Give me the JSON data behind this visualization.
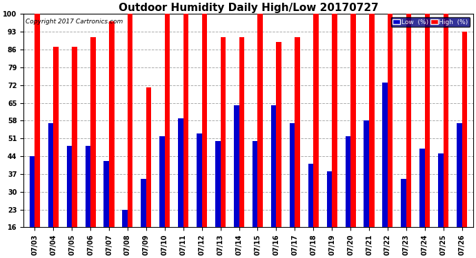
{
  "title": "Outdoor Humidity Daily High/Low 20170727",
  "copyright": "Copyright 2017 Cartronics.com",
  "dates": [
    "07/03",
    "07/04",
    "07/05",
    "07/06",
    "07/07",
    "07/08",
    "07/09",
    "07/10",
    "07/11",
    "07/12",
    "07/13",
    "07/14",
    "07/15",
    "07/16",
    "07/17",
    "07/18",
    "07/19",
    "07/20",
    "07/21",
    "07/22",
    "07/23",
    "07/24",
    "07/25",
    "07/26"
  ],
  "high": [
    100,
    87,
    87,
    91,
    97,
    100,
    71,
    100,
    100,
    100,
    91,
    91,
    100,
    89,
    91,
    100,
    100,
    100,
    100,
    100,
    100,
    100,
    100,
    93
  ],
  "low": [
    44,
    57,
    48,
    48,
    42,
    23,
    35,
    52,
    59,
    53,
    50,
    64,
    50,
    64,
    57,
    41,
    38,
    52,
    58,
    73,
    35,
    47,
    45,
    57
  ],
  "bar_width": 0.28,
  "bg_color": "#ffffff",
  "high_color": "#ff0000",
  "low_color": "#0000cc",
  "grid_color": "#aaaaaa",
  "ymin": 16,
  "ymax": 100,
  "yticks": [
    16,
    23,
    30,
    37,
    44,
    51,
    58,
    65,
    72,
    79,
    86,
    93,
    100
  ],
  "title_fontsize": 11,
  "tick_fontsize": 7,
  "copyright_fontsize": 6.5,
  "legend_low_color": "#0000cc",
  "legend_high_color": "#ff0000",
  "legend_bg": "#000080"
}
